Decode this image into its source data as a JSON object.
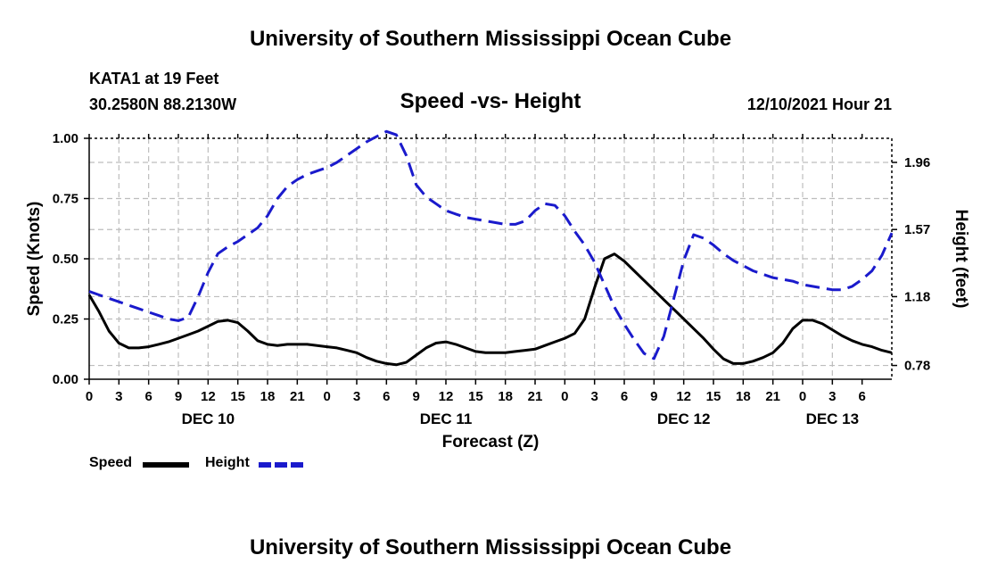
{
  "header": {
    "title": "University of Southern Mississippi Ocean Cube",
    "station": "KATA1 at 19 Feet",
    "coords": "30.2580N  88.2130W",
    "subtitle": "Speed -vs- Height",
    "datetime": "12/10/2021 Hour 21"
  },
  "footer": {
    "title": "University of Southern Mississippi Ocean Cube"
  },
  "legend": {
    "speed_label": "Speed",
    "height_label": "Height"
  },
  "colors": {
    "speed": "#000000",
    "height": "#1a1acc",
    "grid": "#bdbdbd"
  },
  "chart_data": {
    "type": "line",
    "title": "Speed -vs- Height",
    "xlabel": "Forecast (Z)",
    "ylabel_left": "Speed (Knots)",
    "ylabel_right": "Height (feet)",
    "x_range_hours": [
      0,
      81
    ],
    "x_ticks": [
      "0",
      "3",
      "6",
      "9",
      "12",
      "15",
      "18",
      "21",
      "0",
      "3",
      "6",
      "9",
      "12",
      "15",
      "18",
      "21",
      "0",
      "3",
      "6",
      "9",
      "12",
      "15",
      "18",
      "21",
      "0",
      "3",
      "6"
    ],
    "date_labels": [
      {
        "label": "DEC 10",
        "hour": 12
      },
      {
        "label": "DEC 11",
        "hour": 36
      },
      {
        "label": "DEC 12",
        "hour": 60
      },
      {
        "label": "DEC 13",
        "hour": 75
      }
    ],
    "ylim_left": [
      0,
      1.0
    ],
    "yticks_left": [
      "0.00",
      "0.25",
      "0.50",
      "0.75",
      "1.00"
    ],
    "ylim_right": [
      0.7,
      2.1
    ],
    "yticks_right": [
      "0.78",
      "1.18",
      "1.57",
      "1.96"
    ],
    "grid": true,
    "series": [
      {
        "name": "Speed",
        "axis": "left",
        "style": "solid",
        "x": [
          0,
          1,
          2,
          3,
          4,
          5,
          6,
          7,
          8,
          9,
          10,
          11,
          12,
          13,
          14,
          15,
          16,
          17,
          18,
          19,
          20,
          21,
          22,
          23,
          24,
          25,
          26,
          27,
          28,
          29,
          30,
          31,
          32,
          33,
          34,
          35,
          36,
          37,
          38,
          39,
          40,
          41,
          42,
          43,
          44,
          45,
          46,
          47,
          48,
          49,
          50,
          51,
          52,
          53,
          54,
          55,
          56,
          57,
          58,
          59,
          60,
          61,
          62,
          63,
          64,
          65,
          66,
          67,
          68,
          69,
          70,
          71,
          72,
          73,
          74,
          75,
          76,
          77,
          78,
          79,
          80,
          81
        ],
        "values": [
          0.35,
          0.28,
          0.2,
          0.15,
          0.13,
          0.13,
          0.135,
          0.145,
          0.155,
          0.17,
          0.185,
          0.2,
          0.22,
          0.24,
          0.245,
          0.235,
          0.2,
          0.16,
          0.145,
          0.14,
          0.145,
          0.145,
          0.145,
          0.14,
          0.135,
          0.13,
          0.12,
          0.11,
          0.09,
          0.075,
          0.065,
          0.06,
          0.07,
          0.1,
          0.13,
          0.15,
          0.155,
          0.145,
          0.13,
          0.115,
          0.11,
          0.11,
          0.11,
          0.115,
          0.12,
          0.125,
          0.14,
          0.155,
          0.17,
          0.19,
          0.25,
          0.38,
          0.5,
          0.52,
          0.49,
          0.45,
          0.41,
          0.37,
          0.33,
          0.29,
          0.25,
          0.21,
          0.17,
          0.125,
          0.085,
          0.065,
          0.065,
          0.075,
          0.09,
          0.11,
          0.15,
          0.21,
          0.245,
          0.245,
          0.23,
          0.205,
          0.18,
          0.16,
          0.145,
          0.135,
          0.12,
          0.11
        ]
      },
      {
        "name": "Height",
        "axis": "right",
        "style": "dashed",
        "x": [
          0,
          1,
          2,
          3,
          4,
          5,
          6,
          7,
          8,
          9,
          10,
          11,
          12,
          13,
          14,
          15,
          16,
          17,
          18,
          19,
          20,
          21,
          22,
          23,
          24,
          25,
          26,
          27,
          28,
          29,
          30,
          31,
          32,
          33,
          34,
          35,
          36,
          37,
          38,
          39,
          40,
          41,
          42,
          43,
          44,
          45,
          46,
          47,
          48,
          49,
          50,
          51,
          52,
          53,
          54,
          55,
          56,
          57,
          58,
          59,
          60,
          61,
          62,
          63,
          64,
          65,
          66,
          67,
          68,
          69,
          70,
          71,
          72,
          73,
          74,
          75,
          76,
          77,
          78,
          79,
          80,
          81
        ],
        "values": [
          1.21,
          1.19,
          1.17,
          1.15,
          1.13,
          1.11,
          1.09,
          1.07,
          1.05,
          1.04,
          1.06,
          1.18,
          1.32,
          1.43,
          1.47,
          1.5,
          1.54,
          1.58,
          1.65,
          1.75,
          1.82,
          1.86,
          1.89,
          1.91,
          1.93,
          1.96,
          2.0,
          2.04,
          2.08,
          2.11,
          2.14,
          2.12,
          2.0,
          1.83,
          1.76,
          1.72,
          1.68,
          1.66,
          1.64,
          1.63,
          1.62,
          1.61,
          1.6,
          1.6,
          1.62,
          1.68,
          1.72,
          1.71,
          1.65,
          1.56,
          1.48,
          1.38,
          1.25,
          1.12,
          1.02,
          0.93,
          0.85,
          0.82,
          0.95,
          1.17,
          1.39,
          1.54,
          1.52,
          1.48,
          1.43,
          1.39,
          1.36,
          1.33,
          1.31,
          1.29,
          1.28,
          1.27,
          1.25,
          1.24,
          1.23,
          1.22,
          1.22,
          1.24,
          1.28,
          1.33,
          1.42,
          1.55
        ]
      }
    ]
  }
}
